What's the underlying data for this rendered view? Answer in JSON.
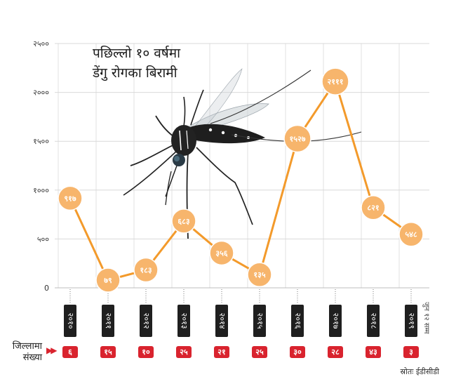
{
  "chart_data": {
    "type": "line",
    "title": "पछिल्लो १० वर्षमा",
    "subtitle": "डेंगु रोगका बिरामी",
    "categories": [
      "२०१०",
      "२०११",
      "२०१२",
      "२०१३",
      "२०१४",
      "२०१५",
      "२०१६",
      "२०१७",
      "२०१८",
      "२०१९"
    ],
    "values": [
      917,
      79,
      183,
      683,
      356,
      135,
      1527,
      2111,
      821,
      548
    ],
    "value_labels": [
      "९१७",
      "७९",
      "१८३",
      "६८३",
      "३५६",
      "१३५",
      "१५२७",
      "२१११",
      "८२१",
      "५४८"
    ],
    "ylim": [
      0,
      2500
    ],
    "yticks": [
      0,
      500,
      1000,
      1500,
      2000,
      2500
    ],
    "ytick_labels": [
      "0",
      "५००",
      "१०००",
      "१५००",
      "२०००",
      "२५००"
    ],
    "grid": true,
    "line_color": "#f39a2b",
    "marker_color": "#f7b56c",
    "note": "जुन १२ सम्म",
    "districts": {
      "label": "जिल्लामा संख्या",
      "values": [
        "६",
        "१५",
        "१०",
        "२५",
        "२१",
        "२५",
        "३०",
        "२८",
        "४३",
        "३"
      ]
    }
  },
  "source": "स्रोतः ईडीसीडी",
  "colors": {
    "badge": "#d9232e",
    "year_tag": "#1f1f1f",
    "grid": "#d9d9d9"
  },
  "illustration": "mosquito-image"
}
